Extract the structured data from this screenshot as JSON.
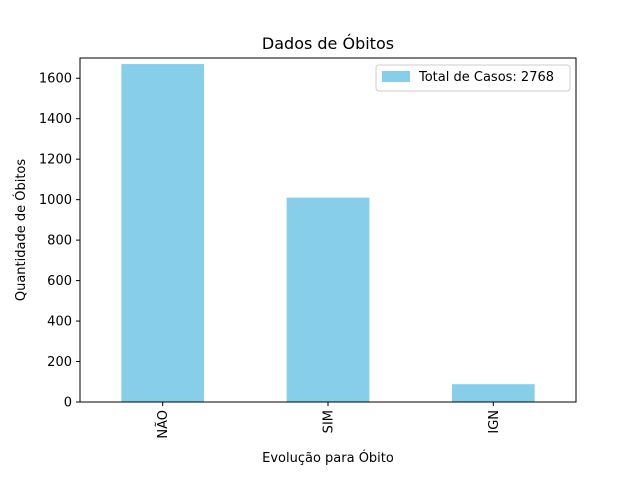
{
  "chart_data": {
    "type": "bar",
    "title": "Dados de Óbitos",
    "xlabel": "Evolução para Óbito",
    "ylabel": "Quantidade de Óbitos",
    "categories": [
      "NÃO",
      "SIM",
      "IGN"
    ],
    "series": [
      {
        "name": "Total de Casos: 2768",
        "values": [
          1670,
          1010,
          88
        ]
      }
    ],
    "ylim": [
      0,
      1700
    ],
    "yticks": [
      0,
      200,
      400,
      600,
      800,
      1000,
      1200,
      1400,
      1600
    ],
    "grid": false,
    "legend_position": "top-right",
    "bar_color": "#87ceeb"
  }
}
